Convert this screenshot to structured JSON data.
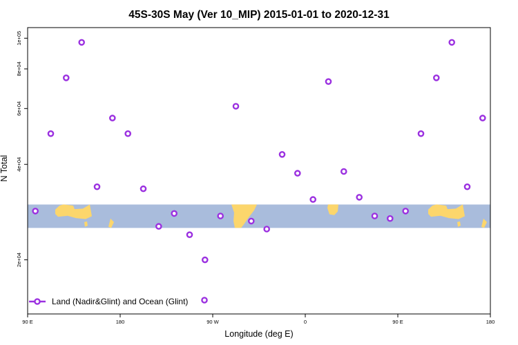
{
  "chart_data": {
    "type": "scatter",
    "title": "45S-30S May (Ver 10_MIP)   2015-01-01 to 2020-12-31",
    "xlabel": "Longitude (deg E)",
    "ylabel": "N Total",
    "x_ticks": [
      {
        "value": 90,
        "label": "90 E"
      },
      {
        "value": 180,
        "label": "180"
      },
      {
        "value": 270,
        "label": "90 W"
      },
      {
        "value": 360,
        "label": "0"
      },
      {
        "value": 450,
        "label": "90 E"
      },
      {
        "value": 540,
        "label": "180"
      }
    ],
    "y_ticks": [
      {
        "value": 20000,
        "label": "2e+04"
      },
      {
        "value": 40000,
        "label": "4e+04"
      },
      {
        "value": 60000,
        "label": "6e+04"
      },
      {
        "value": 80000,
        "label": "8e+04"
      },
      {
        "value": 100000,
        "label": "1e+05"
      }
    ],
    "xlim": [
      90,
      540
    ],
    "ylim": [
      13500,
      108000
    ],
    "y_scale": "log",
    "grid": false,
    "legend_position": "bottom-left",
    "map_strip": {
      "ocean_color": "#a9bcdc",
      "land_color": "#fcd66c",
      "y_from": 25200,
      "y_to": 29900
    },
    "series": [
      {
        "name": "Land (Nadir&Glint) and Ocean (Glint)",
        "color": "#9b30e0",
        "x": [
          97.5,
          112.5,
          127.5,
          142.5,
          157.5,
          172.5,
          187.5,
          202.5,
          217.5,
          232.5,
          247.5,
          262.5,
          277.5,
          292.5,
          307.5,
          322.5,
          337.5,
          352.5,
          367.5,
          382.5,
          397.5,
          412.5,
          427.5,
          442.5,
          457.5,
          472.5,
          487.5,
          502.5,
          517.5,
          532.5
        ],
        "y": [
          28500,
          50000,
          75000,
          97000,
          34000,
          56000,
          50000,
          33500,
          25500,
          28000,
          24000,
          20000,
          27500,
          61000,
          26500,
          25000,
          43000,
          37500,
          31000,
          73000,
          38000,
          31500,
          27500,
          27000,
          28500,
          50000,
          75000,
          97000,
          34000,
          56000
        ]
      }
    ]
  }
}
